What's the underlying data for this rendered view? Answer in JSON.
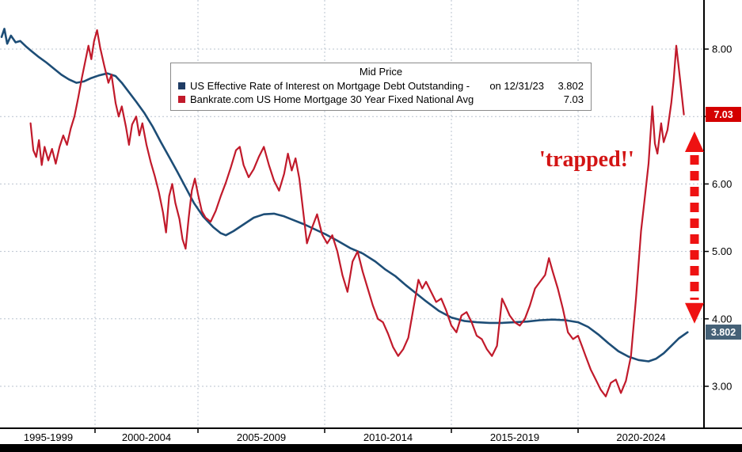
{
  "chart_data": {
    "type": "line",
    "title": "Mid Price",
    "grid": "dashed",
    "legend_position": "top-center",
    "legend": {
      "title": "Mid Price",
      "entries": [
        {
          "label": "US Effective Rate of Interest on Mortgage Debt Outstanding - ",
          "date_note": "on 12/31/23",
          "value": "3.802",
          "color": "#1f3c64"
        },
        {
          "label": "Bankrate.com US Home Mortgage 30 Year Fixed National Avg",
          "date_note": "",
          "value": "7.03",
          "color": "#c11a2b"
        }
      ]
    },
    "x_axis": {
      "labels": [
        "1995-1999",
        "2000-2004",
        "2005-2009",
        "2010-2014",
        "2015-2019",
        "2020-2024"
      ],
      "label_center_years": [
        1997.5,
        2002.5,
        2007.5,
        2012.5,
        2017.5,
        2022.5
      ],
      "boundary_years": [
        2000,
        2005,
        2010,
        2015,
        2020
      ],
      "domain": [
        1995,
        2025
      ],
      "xlabel": ""
    },
    "y_axis": {
      "ticks": [
        {
          "value": 3,
          "label": "3.00"
        },
        {
          "value": 4,
          "label": "4.00"
        },
        {
          "value": 5,
          "label": "5.00"
        },
        {
          "value": 6,
          "label": "6.00"
        },
        {
          "value": 7,
          "label": "7.00"
        },
        {
          "value": 8,
          "label": "8.00"
        }
      ],
      "range": [
        2.4,
        8.73
      ],
      "ylabel": ""
    },
    "series": [
      {
        "name": "US Effective Rate of Interest on Mortgage Debt Outstanding",
        "color": "#1d4d76",
        "width": 2.6,
        "last_value": 3.802,
        "last_value_date": "12/31/23",
        "points": [
          [
            1995.0,
            8.18
          ],
          [
            1995.15,
            8.3
          ],
          [
            1995.3,
            8.08
          ],
          [
            1995.5,
            8.2
          ],
          [
            1995.75,
            8.1
          ],
          [
            1996.0,
            8.12
          ],
          [
            1996.3,
            8.04
          ],
          [
            1996.6,
            7.97
          ],
          [
            1997.0,
            7.88
          ],
          [
            1997.4,
            7.8
          ],
          [
            1997.8,
            7.71
          ],
          [
            1998.2,
            7.62
          ],
          [
            1998.6,
            7.55
          ],
          [
            1999.0,
            7.5
          ],
          [
            1999.4,
            7.52
          ],
          [
            1999.8,
            7.57
          ],
          [
            2000.2,
            7.61
          ],
          [
            2000.6,
            7.64
          ],
          [
            2001.0,
            7.6
          ],
          [
            2001.3,
            7.5
          ],
          [
            2001.6,
            7.38
          ],
          [
            2002.0,
            7.22
          ],
          [
            2002.4,
            7.05
          ],
          [
            2002.8,
            6.85
          ],
          [
            2003.2,
            6.62
          ],
          [
            2003.6,
            6.4
          ],
          [
            2004.0,
            6.18
          ],
          [
            2004.4,
            5.95
          ],
          [
            2004.8,
            5.72
          ],
          [
            2005.2,
            5.52
          ],
          [
            2005.6,
            5.36
          ],
          [
            2005.9,
            5.27
          ],
          [
            2006.1,
            5.24
          ],
          [
            2006.4,
            5.3
          ],
          [
            2006.8,
            5.4
          ],
          [
            2007.2,
            5.5
          ],
          [
            2007.6,
            5.55
          ],
          [
            2008.0,
            5.56
          ],
          [
            2008.4,
            5.52
          ],
          [
            2008.8,
            5.46
          ],
          [
            2009.2,
            5.4
          ],
          [
            2009.6,
            5.33
          ],
          [
            2010.0,
            5.26
          ],
          [
            2010.5,
            5.16
          ],
          [
            2011.0,
            5.05
          ],
          [
            2011.5,
            4.97
          ],
          [
            2012.0,
            4.85
          ],
          [
            2012.4,
            4.73
          ],
          [
            2012.8,
            4.63
          ],
          [
            2013.2,
            4.5
          ],
          [
            2013.6,
            4.38
          ],
          [
            2014.0,
            4.26
          ],
          [
            2014.5,
            4.12
          ],
          [
            2015.0,
            4.02
          ],
          [
            2015.5,
            3.97
          ],
          [
            2016.0,
            3.95
          ],
          [
            2016.5,
            3.94
          ],
          [
            2017.0,
            3.94
          ],
          [
            2017.5,
            3.95
          ],
          [
            2018.0,
            3.96
          ],
          [
            2018.5,
            3.98
          ],
          [
            2019.0,
            3.99
          ],
          [
            2019.5,
            3.98
          ],
          [
            2020.0,
            3.95
          ],
          [
            2020.4,
            3.88
          ],
          [
            2020.8,
            3.77
          ],
          [
            2021.2,
            3.64
          ],
          [
            2021.6,
            3.52
          ],
          [
            2022.0,
            3.44
          ],
          [
            2022.4,
            3.39
          ],
          [
            2022.8,
            3.37
          ],
          [
            2023.1,
            3.41
          ],
          [
            2023.4,
            3.49
          ],
          [
            2023.7,
            3.6
          ],
          [
            2024.0,
            3.71
          ],
          [
            2024.35,
            3.802
          ]
        ]
      },
      {
        "name": "Bankrate.com US Home Mortgage 30 Year Fixed National Avg",
        "color": "#c11a2b",
        "width": 2.2,
        "last_value": 7.03,
        "points": [
          [
            1996.55,
            6.9
          ],
          [
            1996.7,
            6.5
          ],
          [
            1996.85,
            6.4
          ],
          [
            1997.0,
            6.65
          ],
          [
            1997.15,
            6.28
          ],
          [
            1997.3,
            6.55
          ],
          [
            1997.5,
            6.35
          ],
          [
            1997.7,
            6.52
          ],
          [
            1997.9,
            6.3
          ],
          [
            1998.1,
            6.55
          ],
          [
            1998.3,
            6.72
          ],
          [
            1998.5,
            6.58
          ],
          [
            1998.7,
            6.82
          ],
          [
            1998.9,
            7.0
          ],
          [
            1999.1,
            7.28
          ],
          [
            1999.3,
            7.58
          ],
          [
            1999.5,
            7.85
          ],
          [
            1999.65,
            8.05
          ],
          [
            1999.8,
            7.85
          ],
          [
            1999.95,
            8.12
          ],
          [
            2000.1,
            8.28
          ],
          [
            2000.25,
            8.02
          ],
          [
            2000.45,
            7.75
          ],
          [
            2000.65,
            7.5
          ],
          [
            2000.8,
            7.62
          ],
          [
            2001.0,
            7.2
          ],
          [
            2001.15,
            7.0
          ],
          [
            2001.3,
            7.15
          ],
          [
            2001.5,
            6.85
          ],
          [
            2001.65,
            6.58
          ],
          [
            2001.8,
            6.88
          ],
          [
            2002.0,
            7.0
          ],
          [
            2002.15,
            6.72
          ],
          [
            2002.3,
            6.9
          ],
          [
            2002.5,
            6.58
          ],
          [
            2002.7,
            6.33
          ],
          [
            2002.9,
            6.12
          ],
          [
            2003.1,
            5.88
          ],
          [
            2003.3,
            5.58
          ],
          [
            2003.45,
            5.28
          ],
          [
            2003.6,
            5.82
          ],
          [
            2003.75,
            6.0
          ],
          [
            2003.9,
            5.72
          ],
          [
            2004.1,
            5.48
          ],
          [
            2004.25,
            5.18
          ],
          [
            2004.4,
            5.04
          ],
          [
            2004.55,
            5.5
          ],
          [
            2004.7,
            5.9
          ],
          [
            2004.85,
            6.08
          ],
          [
            2005.0,
            5.85
          ],
          [
            2005.15,
            5.6
          ],
          [
            2005.3,
            5.5
          ],
          [
            2005.5,
            5.44
          ],
          [
            2005.7,
            5.6
          ],
          [
            2005.9,
            5.82
          ],
          [
            2006.1,
            6.02
          ],
          [
            2006.3,
            6.25
          ],
          [
            2006.5,
            6.5
          ],
          [
            2006.65,
            6.55
          ],
          [
            2006.8,
            6.28
          ],
          [
            2007.0,
            6.1
          ],
          [
            2007.2,
            6.22
          ],
          [
            2007.4,
            6.4
          ],
          [
            2007.6,
            6.55
          ],
          [
            2007.8,
            6.28
          ],
          [
            2008.0,
            6.05
          ],
          [
            2008.2,
            5.9
          ],
          [
            2008.4,
            6.15
          ],
          [
            2008.55,
            6.45
          ],
          [
            2008.7,
            6.2
          ],
          [
            2008.85,
            6.38
          ],
          [
            2009.0,
            6.08
          ],
          [
            2009.15,
            5.6
          ],
          [
            2009.3,
            5.12
          ],
          [
            2009.5,
            5.35
          ],
          [
            2009.7,
            5.55
          ],
          [
            2009.9,
            5.25
          ],
          [
            2010.1,
            5.12
          ],
          [
            2010.3,
            5.24
          ],
          [
            2010.5,
            5.0
          ],
          [
            2010.7,
            4.65
          ],
          [
            2010.9,
            4.4
          ],
          [
            2011.1,
            4.85
          ],
          [
            2011.3,
            5.0
          ],
          [
            2011.5,
            4.7
          ],
          [
            2011.7,
            4.45
          ],
          [
            2011.9,
            4.2
          ],
          [
            2012.1,
            4.0
          ],
          [
            2012.3,
            3.95
          ],
          [
            2012.5,
            3.78
          ],
          [
            2012.7,
            3.58
          ],
          [
            2012.9,
            3.45
          ],
          [
            2013.1,
            3.55
          ],
          [
            2013.3,
            3.72
          ],
          [
            2013.5,
            4.15
          ],
          [
            2013.7,
            4.58
          ],
          [
            2013.85,
            4.45
          ],
          [
            2014.0,
            4.55
          ],
          [
            2014.2,
            4.4
          ],
          [
            2014.4,
            4.25
          ],
          [
            2014.6,
            4.3
          ],
          [
            2014.8,
            4.12
          ],
          [
            2015.0,
            3.9
          ],
          [
            2015.2,
            3.8
          ],
          [
            2015.4,
            4.05
          ],
          [
            2015.6,
            4.1
          ],
          [
            2015.8,
            3.95
          ],
          [
            2016.0,
            3.75
          ],
          [
            2016.2,
            3.7
          ],
          [
            2016.4,
            3.55
          ],
          [
            2016.6,
            3.45
          ],
          [
            2016.8,
            3.6
          ],
          [
            2017.0,
            4.3
          ],
          [
            2017.15,
            4.18
          ],
          [
            2017.3,
            4.05
          ],
          [
            2017.5,
            3.95
          ],
          [
            2017.7,
            3.9
          ],
          [
            2017.9,
            4.0
          ],
          [
            2018.1,
            4.2
          ],
          [
            2018.3,
            4.45
          ],
          [
            2018.5,
            4.55
          ],
          [
            2018.7,
            4.65
          ],
          [
            2018.85,
            4.9
          ],
          [
            2019.0,
            4.7
          ],
          [
            2019.2,
            4.45
          ],
          [
            2019.4,
            4.15
          ],
          [
            2019.6,
            3.8
          ],
          [
            2019.8,
            3.7
          ],
          [
            2020.0,
            3.75
          ],
          [
            2020.15,
            3.6
          ],
          [
            2020.3,
            3.45
          ],
          [
            2020.5,
            3.25
          ],
          [
            2020.7,
            3.1
          ],
          [
            2020.9,
            2.95
          ],
          [
            2021.1,
            2.85
          ],
          [
            2021.3,
            3.05
          ],
          [
            2021.5,
            3.1
          ],
          [
            2021.7,
            2.9
          ],
          [
            2021.9,
            3.08
          ],
          [
            2022.1,
            3.45
          ],
          [
            2022.3,
            4.3
          ],
          [
            2022.5,
            5.3
          ],
          [
            2022.65,
            5.8
          ],
          [
            2022.8,
            6.3
          ],
          [
            2022.95,
            7.15
          ],
          [
            2023.05,
            6.6
          ],
          [
            2023.15,
            6.45
          ],
          [
            2023.3,
            6.9
          ],
          [
            2023.4,
            6.62
          ],
          [
            2023.55,
            6.8
          ],
          [
            2023.7,
            7.2
          ],
          [
            2023.8,
            7.55
          ],
          [
            2023.9,
            8.05
          ],
          [
            2024.05,
            7.55
          ],
          [
            2024.2,
            7.03
          ]
        ]
      }
    ],
    "annotations": {
      "trapped_label": "'trapped!'",
      "trapped_color": "#d31414",
      "arrow": {
        "top_value": 6.78,
        "bottom_value": 3.93,
        "color": "#ee1212"
      }
    },
    "badges": [
      {
        "label": "7.03",
        "bg": "#d40000"
      },
      {
        "label": "3.802",
        "bg": "#456177"
      }
    ],
    "colors": {
      "gridline": "#b9c3cf",
      "axis": "#000000"
    }
  }
}
